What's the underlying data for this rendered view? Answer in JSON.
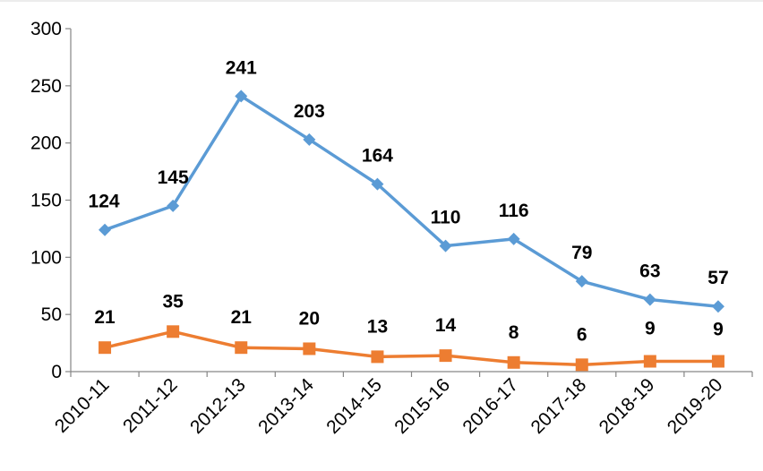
{
  "chart_data": {
    "type": "line",
    "title": "",
    "xlabel": "",
    "ylabel": "",
    "categories": [
      "2010-11",
      "2011-12",
      "2012-13",
      "2013-14",
      "2014-15",
      "2015-16",
      "2016-17",
      "2017-18",
      "2018-19",
      "2019-20"
    ],
    "ylim": [
      0,
      300
    ],
    "yticks": [
      0,
      50,
      100,
      150,
      200,
      250,
      300
    ],
    "grid": false,
    "legend": "none",
    "series": [
      {
        "values": [
          124,
          145,
          241,
          203,
          164,
          110,
          116,
          79,
          63,
          57
        ],
        "color": "#5B9BD5",
        "marker": "diamond"
      },
      {
        "values": [
          21,
          35,
          21,
          20,
          13,
          14,
          8,
          6,
          9,
          9
        ],
        "color": "#ED7D31",
        "marker": "square"
      }
    ]
  }
}
